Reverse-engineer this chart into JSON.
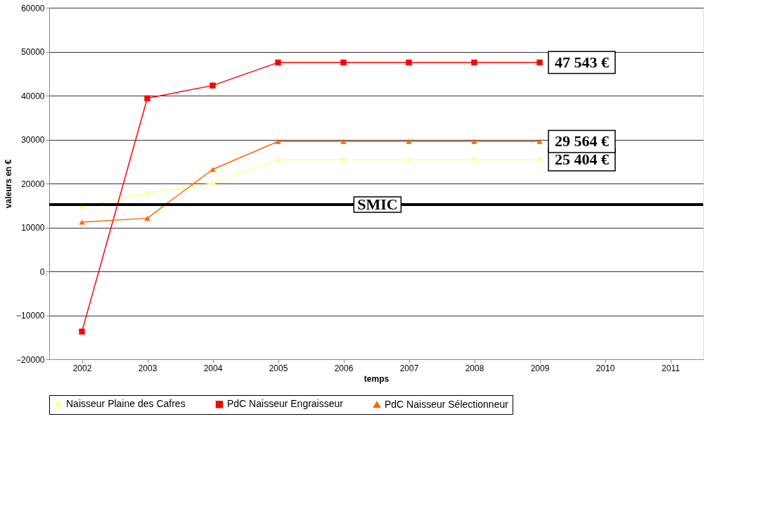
{
  "chart_data": {
    "type": "line",
    "categories": [
      "2002",
      "2003",
      "2004",
      "2005",
      "2006",
      "2007",
      "2008",
      "2009",
      "2010",
      "2011"
    ],
    "series": [
      {
        "name": "Naisseur Plaine des Cafres",
        "color": "#ffff99",
        "marker": "diamond",
        "values": [
          14700,
          17800,
          20000,
          25404,
          25404,
          25404,
          25404,
          25404,
          null,
          null
        ],
        "value_labels": [
          null,
          null,
          null,
          null,
          null,
          null,
          null,
          "25 404 €",
          null,
          null
        ]
      },
      {
        "name": "PdC Naisseur Engraisseur",
        "color": "#ff0000",
        "marker": "square",
        "values": [
          -13700,
          39400,
          42300,
          47543,
          47543,
          47543,
          47543,
          47543,
          null,
          null
        ],
        "value_labels": [
          null,
          null,
          null,
          null,
          null,
          null,
          null,
          "47 543 €",
          null,
          null
        ]
      },
      {
        "name": "PdC Naisseur Sélectionneur",
        "color": "#ff6600",
        "marker": "triangle",
        "values": [
          11200,
          12100,
          23200,
          29564,
          29564,
          29564,
          29564,
          29564,
          null,
          null
        ],
        "value_labels": [
          null,
          null,
          null,
          null,
          null,
          null,
          null,
          "29 564 €",
          null,
          null
        ]
      }
    ],
    "xlabel": "temps",
    "ylabel": "valeurs en €",
    "ylim": [
      -20000,
      60000
    ],
    "yticks": [
      -20000,
      -10000,
      0,
      10000,
      20000,
      30000,
      40000,
      50000,
      60000
    ],
    "grid": "y",
    "legend": "bottom",
    "ref_lines": [
      {
        "axis": "y",
        "value": 15200,
        "label": "SMIC",
        "color": "#000000"
      }
    ]
  }
}
